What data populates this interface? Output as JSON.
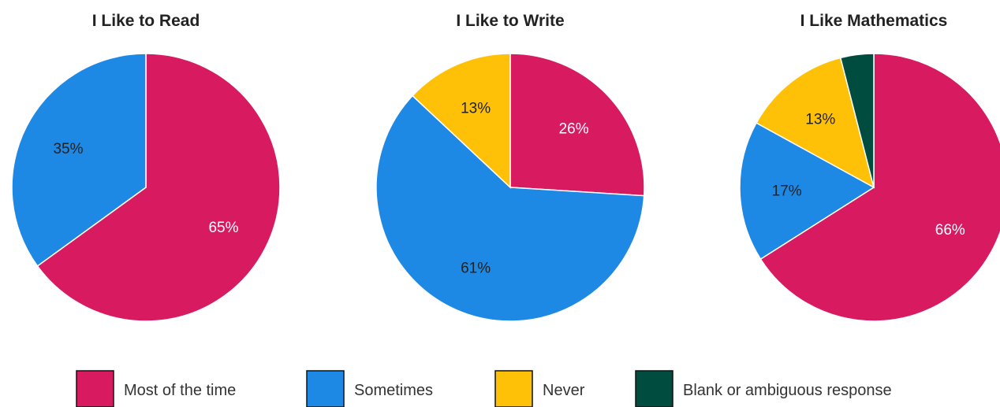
{
  "legend": [
    {
      "label": "Most of the time",
      "color": "#d81b60"
    },
    {
      "label": "Sometimes",
      "color": "#1e88e5"
    },
    {
      "label": "Never",
      "color": "#ffc107"
    },
    {
      "label": "Blank or ambiguous response",
      "color": "#004d40"
    }
  ],
  "chart_data": [
    {
      "type": "pie",
      "title": "I Like to Read",
      "categories": [
        "Most of the time",
        "Sometimes",
        "Never",
        "Blank or ambiguous response"
      ],
      "values": [
        65,
        35,
        0,
        0
      ],
      "labels": [
        "65%",
        "35%",
        "",
        ""
      ],
      "start": "12 o'clock, clockwise"
    },
    {
      "type": "pie",
      "title": "I Like to Write",
      "categories": [
        "Most of the time",
        "Sometimes",
        "Never",
        "Blank or ambiguous response"
      ],
      "values": [
        26,
        61,
        13,
        0
      ],
      "labels": [
        "26%",
        "61%",
        "13%",
        ""
      ],
      "start": "12 o'clock, clockwise"
    },
    {
      "type": "pie",
      "title": "I Like Mathematics",
      "categories": [
        "Most of the time",
        "Sometimes",
        "Never",
        "Blank or ambiguous response"
      ],
      "values": [
        66,
        17,
        13,
        4
      ],
      "labels": [
        "66%",
        "17%",
        "13%",
        ""
      ],
      "start": "12 o'clock, clockwise"
    }
  ]
}
